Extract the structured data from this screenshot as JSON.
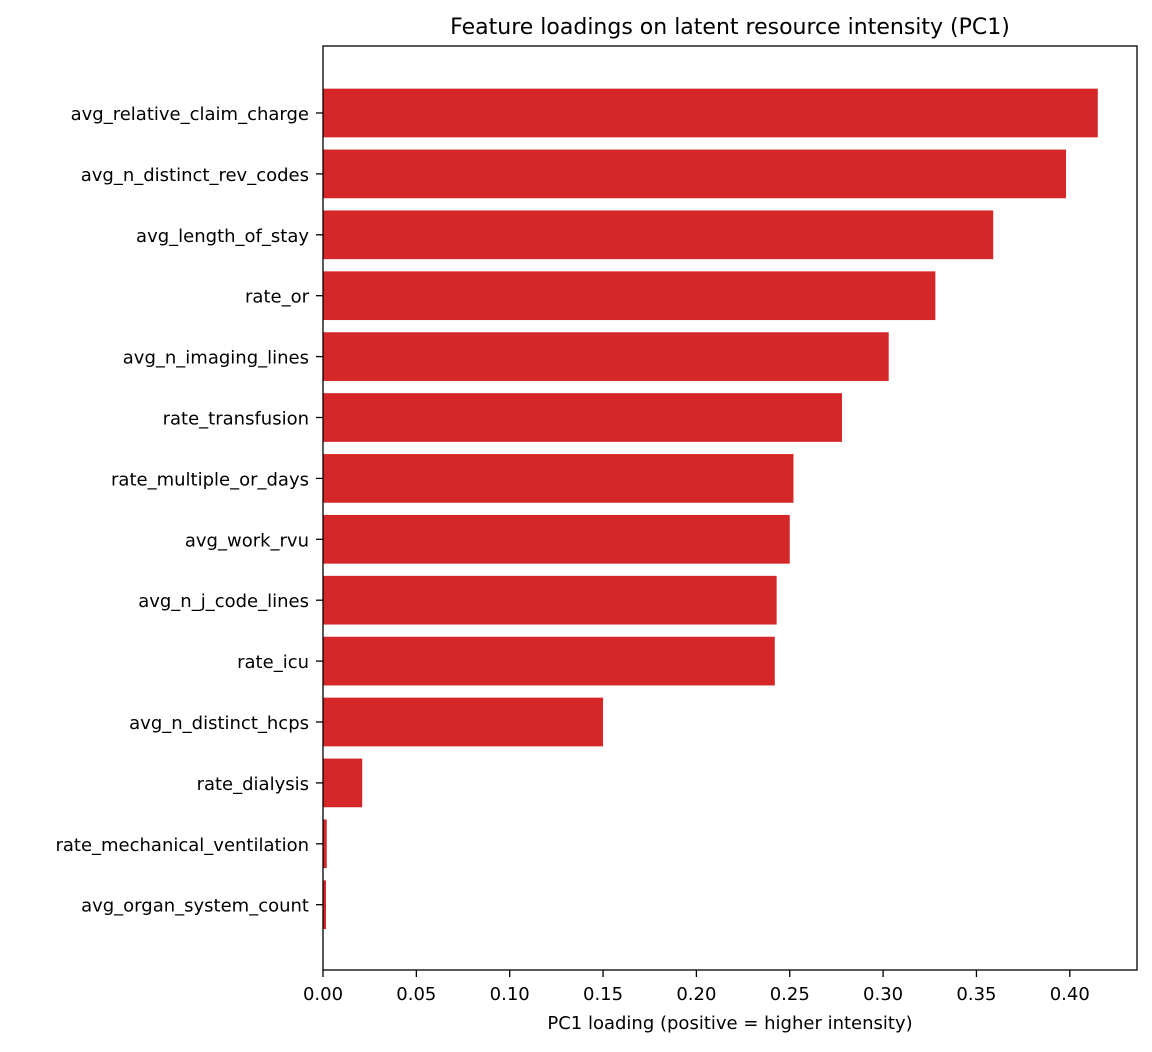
{
  "chart_data": {
    "type": "bar",
    "orientation": "horizontal",
    "title": "Feature loadings on latent resource intensity (PC1)",
    "xlabel": "PC1 loading (positive = higher intensity)",
    "ylabel": "",
    "xlim": [
      0,
      0.436
    ],
    "xticks": [
      0.0,
      0.05,
      0.1,
      0.15,
      0.2,
      0.25,
      0.3,
      0.35,
      0.4
    ],
    "xtick_labels": [
      "0.00",
      "0.05",
      "0.10",
      "0.15",
      "0.20",
      "0.25",
      "0.30",
      "0.35",
      "0.40"
    ],
    "grid": false,
    "bar_color": "#d62728",
    "categories": [
      "avg_relative_claim_charge",
      "avg_n_distinct_rev_codes",
      "avg_length_of_stay",
      "rate_or",
      "avg_n_imaging_lines",
      "rate_transfusion",
      "rate_multiple_or_days",
      "avg_work_rvu",
      "avg_n_j_code_lines",
      "rate_icu",
      "avg_n_distinct_hcps",
      "rate_dialysis",
      "rate_mechanical_ventilation",
      "avg_organ_system_count"
    ],
    "values": [
      0.415,
      0.398,
      0.359,
      0.328,
      0.303,
      0.278,
      0.252,
      0.25,
      0.243,
      0.242,
      0.15,
      0.021,
      0.002,
      0.0016
    ]
  }
}
